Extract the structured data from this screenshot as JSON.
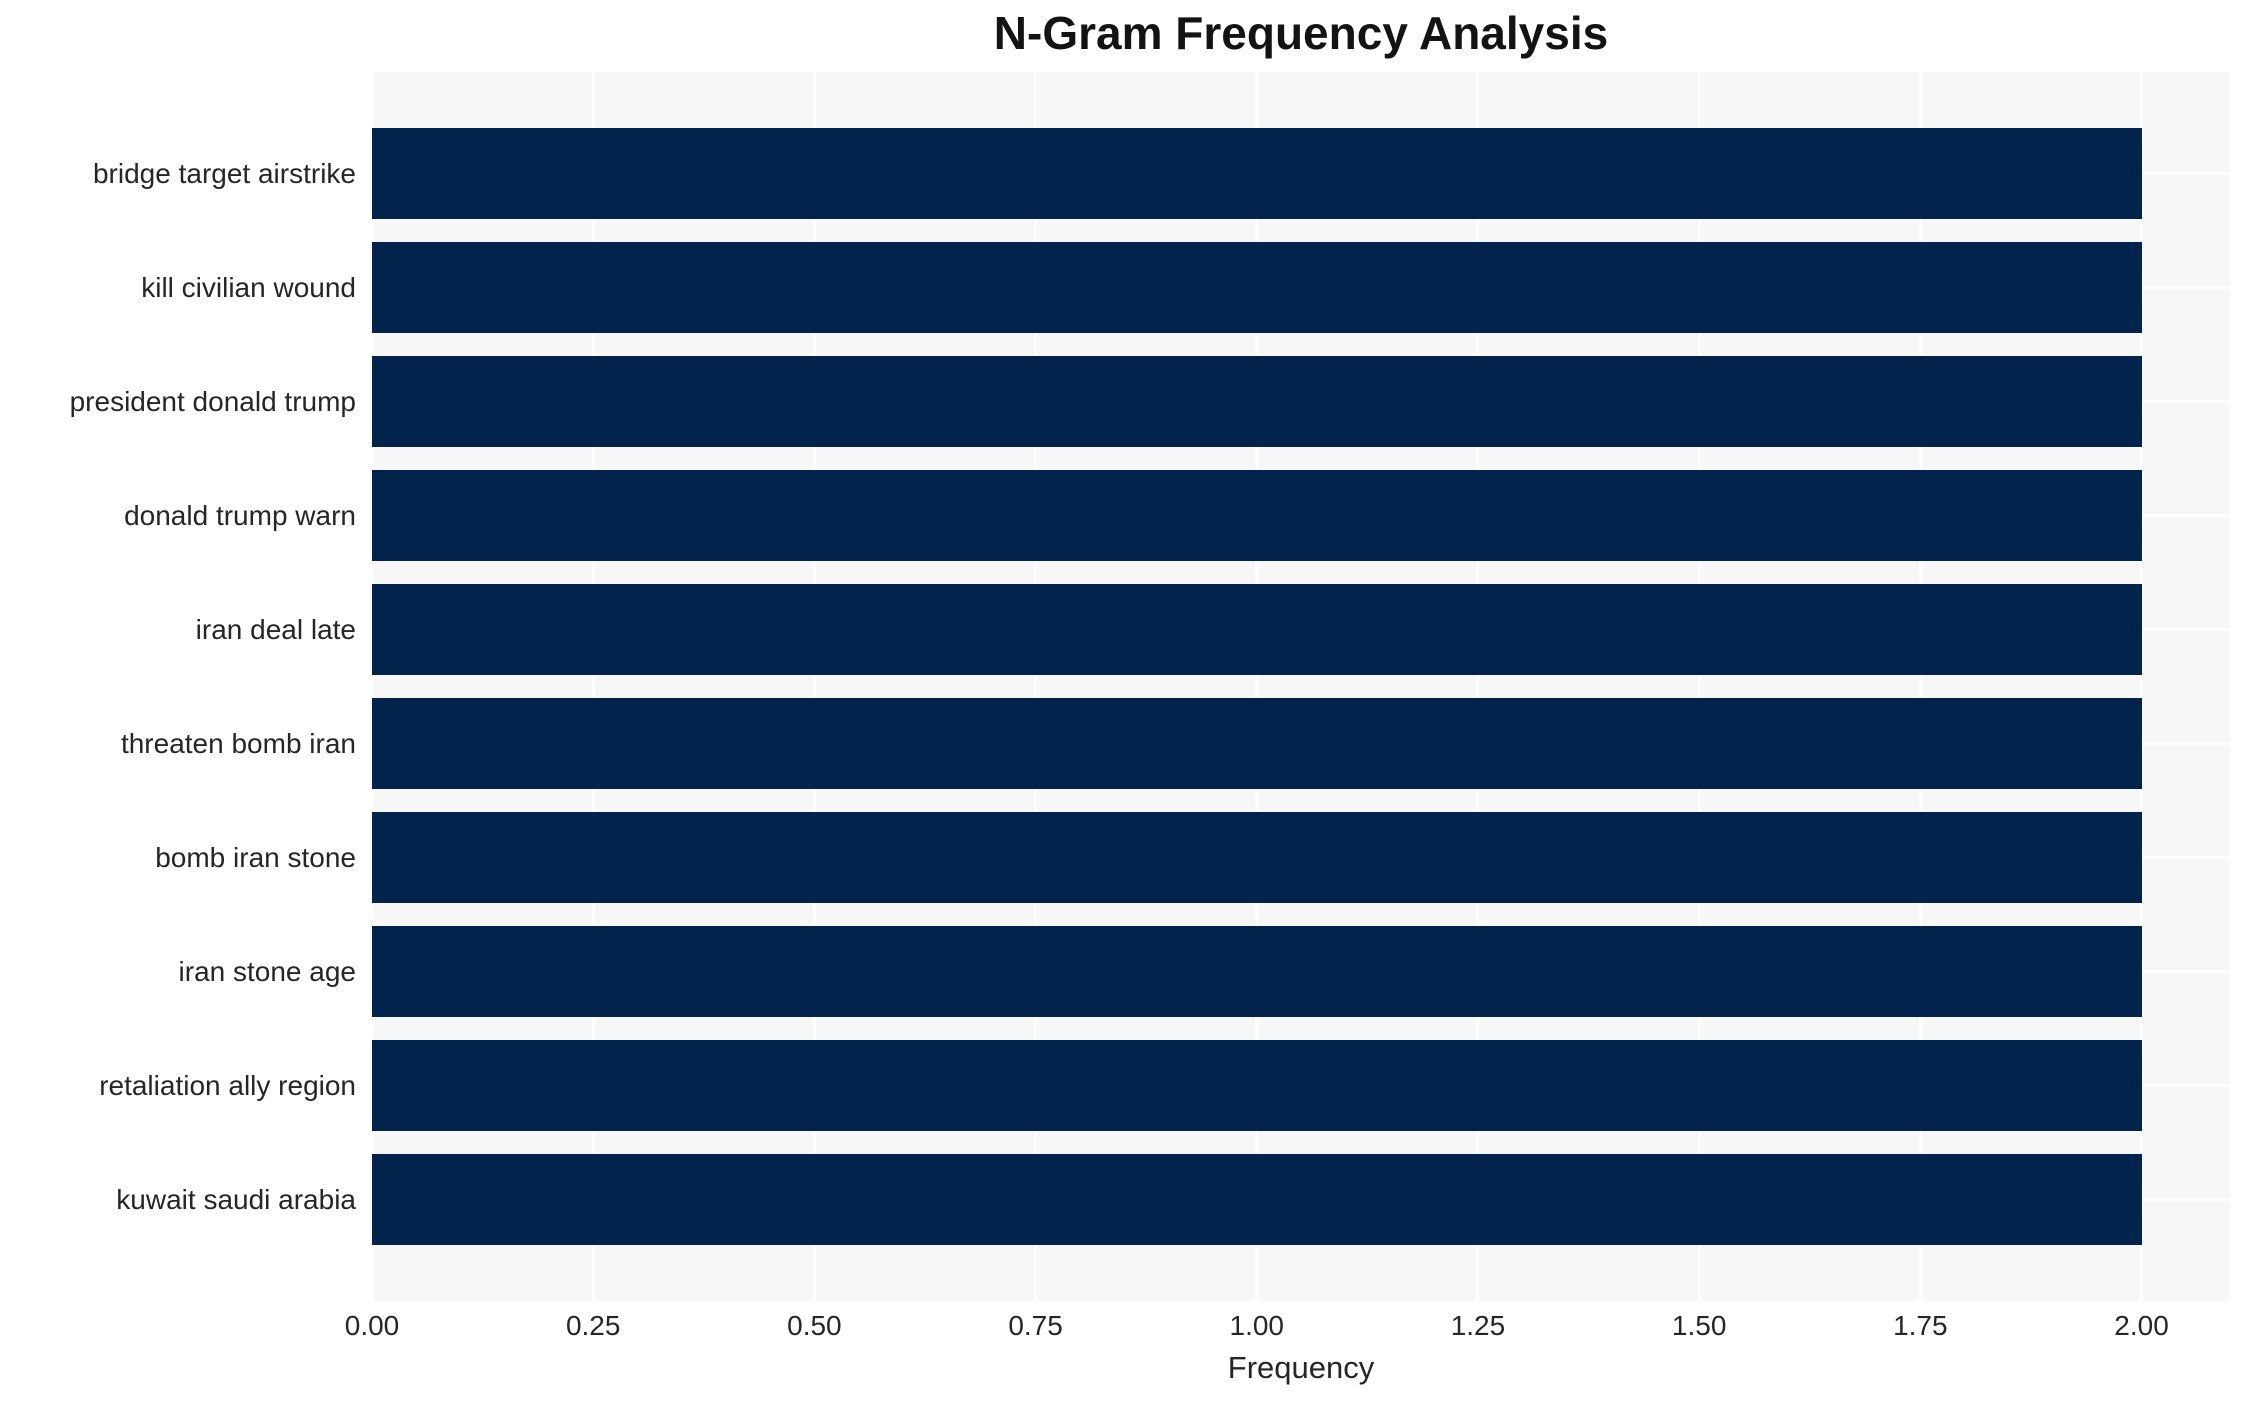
{
  "chart_data": {
    "type": "bar",
    "orientation": "horizontal",
    "title": "N-Gram Frequency Analysis",
    "xlabel": "Frequency",
    "ylabel": "",
    "categories": [
      "bridge target airstrike",
      "kill civilian wound",
      "president donald trump",
      "donald trump warn",
      "iran deal late",
      "threaten bomb iran",
      "bomb iran stone",
      "iran stone age",
      "retaliation ally region",
      "kuwait saudi arabia"
    ],
    "values": [
      2.0,
      2.0,
      2.0,
      2.0,
      2.0,
      2.0,
      2.0,
      2.0,
      2.0,
      2.0
    ],
    "xlim": [
      0,
      2.1
    ],
    "xtick_values": [
      0,
      0.25,
      0.5,
      0.75,
      1.0,
      1.25,
      1.5,
      1.75,
      2.0
    ],
    "xtick_labels": [
      "0.00",
      "0.25",
      "0.50",
      "0.75",
      "1.00",
      "1.25",
      "1.50",
      "1.75",
      "2.00"
    ],
    "grid": true,
    "legend": false,
    "colors": {
      "bar": "#02234c",
      "plot_background": "#f7f7f7",
      "gridline": "#ffffff",
      "tick_text": "#262626",
      "title_text": "#131313",
      "page_background": "#ffffff"
    }
  }
}
